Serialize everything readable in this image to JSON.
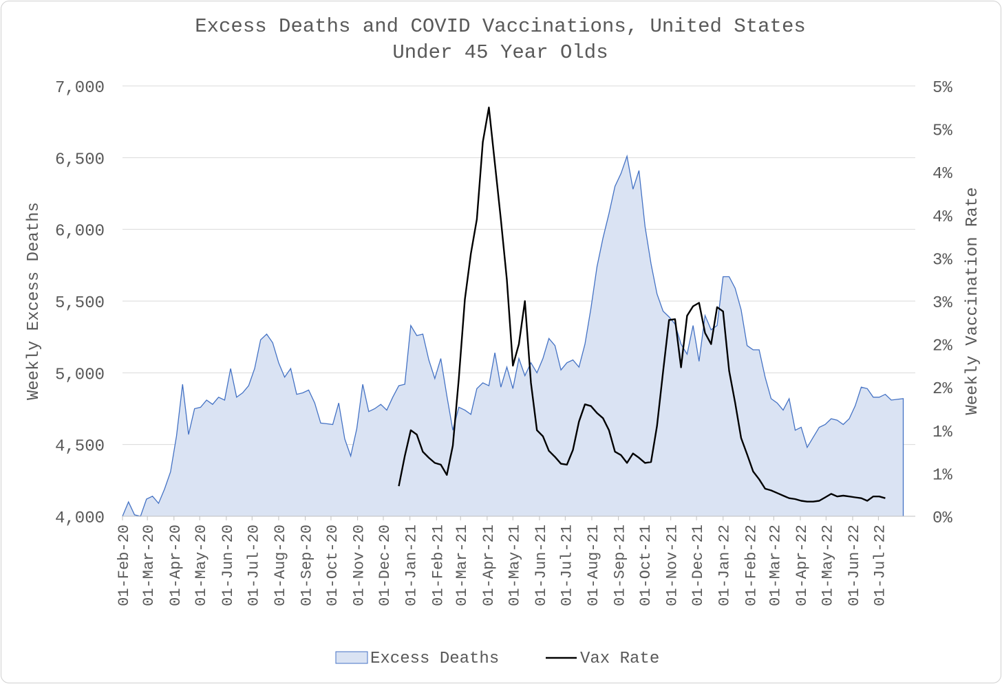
{
  "chart_data": {
    "type": "area",
    "title": "Excess Deaths and COVID Vaccinations, United States",
    "subtitle": "Under 45 Year Olds",
    "ylabel_left": "Weekly Excess Deaths",
    "ylabel_right": "Weekly Vaccination Rate",
    "ylim_left": [
      4000,
      7000
    ],
    "yticks_left": [
      "4,000",
      "4,500",
      "5,000",
      "5,500",
      "6,000",
      "6,500",
      "7,000"
    ],
    "ylim_right": [
      0,
      5
    ],
    "yticks_right": [
      "0%",
      "1%",
      "1%",
      "2%",
      "2%",
      "3%",
      "3%",
      "4%",
      "4%",
      "5%",
      "5%"
    ],
    "x_ticks": [
      "01-Feb-20",
      "01-Mar-20",
      "01-Apr-20",
      "01-May-20",
      "01-Jun-20",
      "01-Jul-20",
      "01-Aug-20",
      "01-Sep-20",
      "01-Oct-20",
      "01-Nov-20",
      "01-Dec-20",
      "01-Jan-21",
      "01-Feb-21",
      "01-Mar-21",
      "01-Apr-21",
      "01-May-21",
      "01-Jun-21",
      "01-Jul-21",
      "01-Aug-21",
      "01-Sep-21",
      "01-Oct-21",
      "01-Nov-21",
      "01-Dec-21",
      "01-Jan-22",
      "01-Feb-22",
      "01-Mar-22",
      "01-Apr-22",
      "01-May-22",
      "01-Jun-22",
      "01-Jul-22"
    ],
    "grid": true,
    "legend_position": "bottom",
    "series": [
      {
        "name": "Excess Deaths",
        "axis": "left",
        "kind": "area",
        "color": "#4472c4",
        "fill": "#dae3f3",
        "start": "2020-02-01",
        "step_days": 7,
        "values": [
          4000,
          4100,
          4010,
          4000,
          4120,
          4140,
          4090,
          4190,
          4310,
          4560,
          4920,
          4570,
          4750,
          4760,
          4810,
          4780,
          4830,
          4810,
          5030,
          4830,
          4860,
          4910,
          5030,
          5230,
          5270,
          5210,
          5070,
          4970,
          5030,
          4850,
          4860,
          4880,
          4790,
          4650,
          4645,
          4640,
          4790,
          4540,
          4420,
          4610,
          4920,
          4730,
          4750,
          4780,
          4740,
          4830,
          4910,
          4920,
          5330,
          5260,
          5270,
          5090,
          4960,
          5100,
          4840,
          4600,
          4760,
          4740,
          4710,
          4890,
          4930,
          4910,
          5140,
          4900,
          5040,
          4890,
          5100,
          4980,
          5070,
          5000,
          5100,
          5240,
          5190,
          5020,
          5070,
          5090,
          5040,
          5200,
          5450,
          5740,
          5940,
          6110,
          6300,
          6390,
          6510,
          6280,
          6410,
          6020,
          5760,
          5550,
          5430,
          5390,
          5340,
          5200,
          5130,
          5330,
          5080,
          5400,
          5300,
          5330,
          5670,
          5670,
          5590,
          5440,
          5190,
          5160,
          5160,
          4970,
          4820,
          4790,
          4740,
          4820,
          4600,
          4620,
          4480,
          4550,
          4620,
          4640,
          4680,
          4670,
          4640,
          4680,
          4770,
          4900,
          4890,
          4830,
          4830,
          4850,
          4810,
          4815,
          4820
        ]
      },
      {
        "name": "Vax Rate",
        "axis": "right",
        "kind": "line",
        "color": "#000000",
        "start": "2020-12-19",
        "step_days": 7,
        "values": [
          0.35,
          0.7,
          1.0,
          0.95,
          0.75,
          0.68,
          0.62,
          0.6,
          0.48,
          0.82,
          1.6,
          2.52,
          3.05,
          3.45,
          4.35,
          4.75,
          4.1,
          3.45,
          2.75,
          1.75,
          2.0,
          2.5,
          1.55,
          1.0,
          0.93,
          0.76,
          0.69,
          0.61,
          0.6,
          0.77,
          1.1,
          1.3,
          1.28,
          1.2,
          1.14,
          1.0,
          0.75,
          0.71,
          0.62,
          0.73,
          0.68,
          0.62,
          0.63,
          1.05,
          1.68,
          2.28,
          2.29,
          1.73,
          2.33,
          2.44,
          2.48,
          2.13,
          2.0,
          2.43,
          2.38,
          1.69,
          1.32,
          0.91,
          0.72,
          0.52,
          0.43,
          0.32,
          0.3,
          0.27,
          0.24,
          0.21,
          0.2,
          0.18,
          0.17,
          0.17,
          0.18,
          0.22,
          0.26,
          0.23,
          0.24,
          0.23,
          0.22,
          0.21,
          0.18,
          0.23,
          0.23,
          0.21
        ]
      }
    ]
  }
}
